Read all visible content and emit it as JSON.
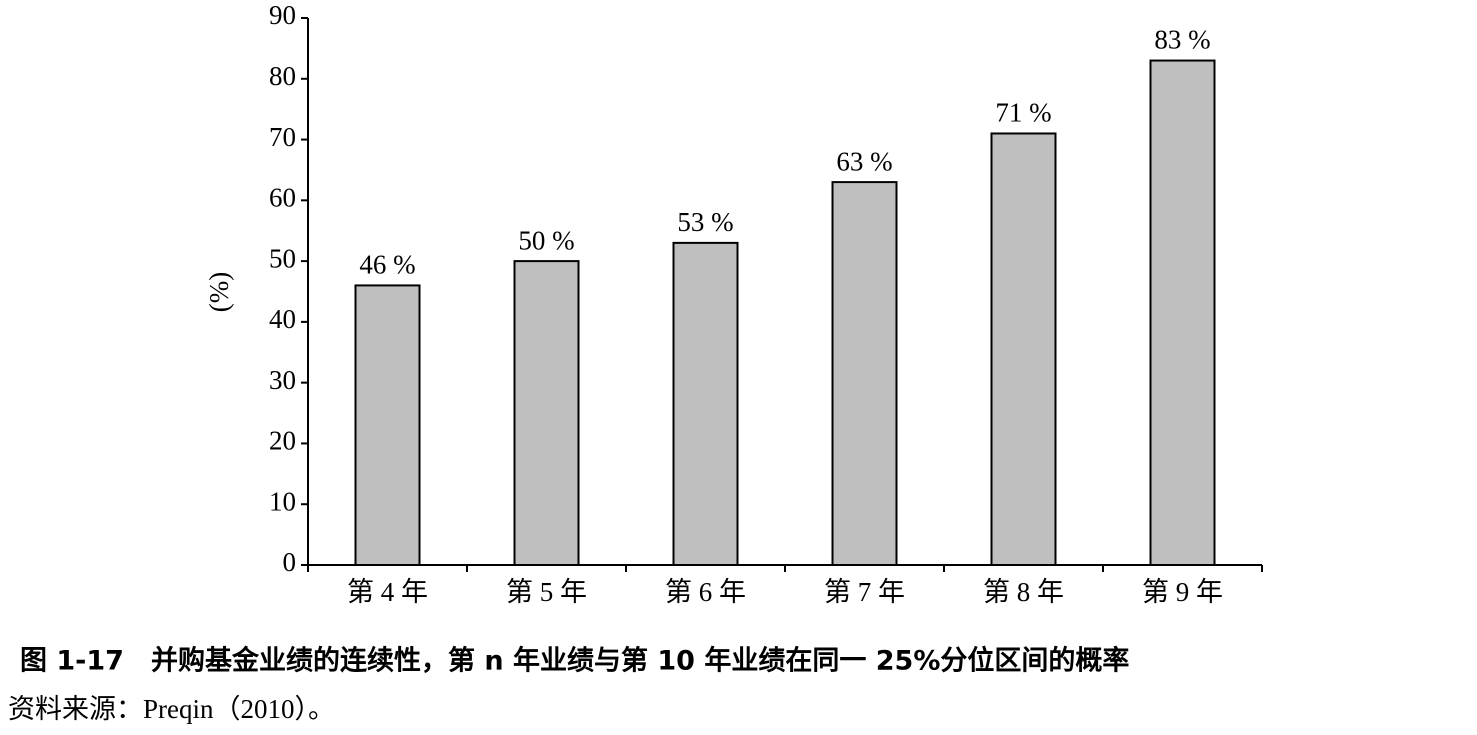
{
  "chart_data": {
    "type": "bar",
    "title": "图 1-17　并购基金业绩的连续性，第 n 年业绩与第 10 年业绩在同一 25%分位区间的概率",
    "source": "资料来源：Preqin（2010）。",
    "y_label": "(%)",
    "categories": [
      "第 4 年",
      "第 5 年",
      "第 6 年",
      "第 7 年",
      "第 8 年",
      "第 9 年"
    ],
    "values": [
      46,
      50,
      53,
      63,
      71,
      83
    ],
    "value_labels": [
      "46 %",
      "50 %",
      "53 %",
      "63 %",
      "71 %",
      "83 %"
    ],
    "color": "#bfbfbf",
    "ylim": [
      0,
      90
    ],
    "yticks": [
      0,
      10,
      20,
      30,
      40,
      50,
      60,
      70,
      80,
      90
    ],
    "grid": false
  }
}
